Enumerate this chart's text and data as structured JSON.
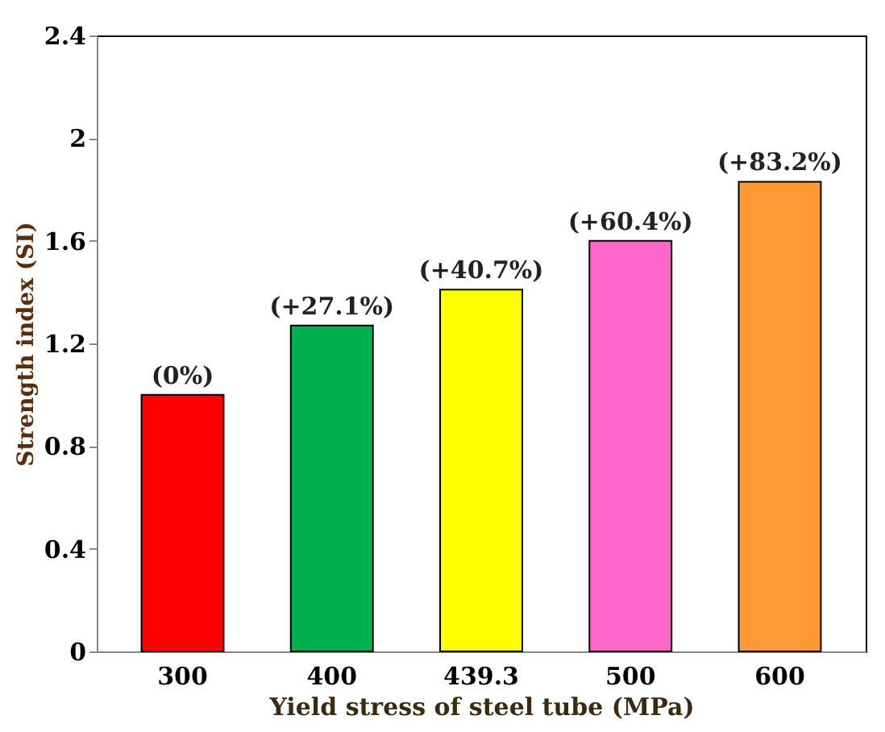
{
  "chart_data": {
    "type": "bar",
    "xlabel": "Yield stress of steel tube (MPa)",
    "ylabel": "Strength index (SI)",
    "categories": [
      "300",
      "400",
      "439.3",
      "500",
      "600"
    ],
    "values": [
      1.0,
      1.27,
      1.41,
      1.6,
      1.83
    ],
    "colors": [
      "#ff0000",
      "#00b050",
      "#ffff00",
      "#ff66cc",
      "#ff9933"
    ],
    "annotations": [
      {
        "text": "(0%)",
        "x": "300",
        "y": 1.0
      },
      {
        "text": "(+27.1%)",
        "x": "400",
        "y": 1.27
      },
      {
        "text": "(+40.7%)",
        "x": "439.3",
        "y": 1.41
      },
      {
        "text": "(+60.4%)",
        "x": "500",
        "y": 1.6
      },
      {
        "text": "(+83.2%)",
        "x": "600",
        "y": 1.83
      }
    ],
    "ylim": [
      0,
      2.4
    ],
    "yticks": [
      0,
      0.4,
      0.8,
      1.2,
      1.6,
      2,
      2.4
    ],
    "grid": false
  }
}
